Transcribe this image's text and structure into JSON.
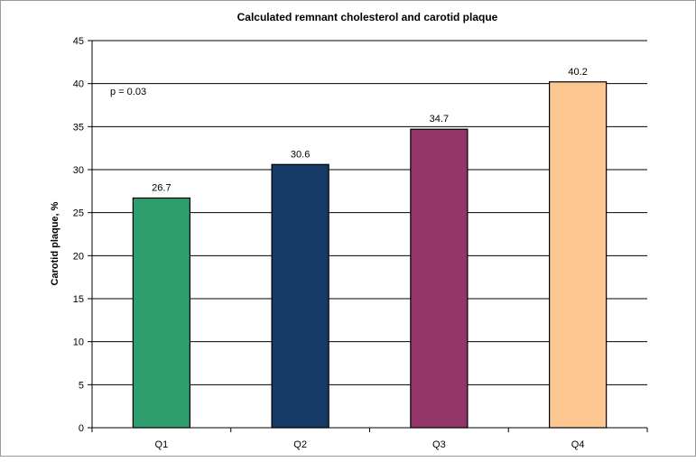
{
  "chart_data": {
    "type": "bar",
    "title": "Calculated remnant cholesterol and carotid plaque",
    "xlabel": "",
    "ylabel": "Carotid plaque, %",
    "categories": [
      "Q1",
      "Q2",
      "Q3",
      "Q4"
    ],
    "values": [
      26.7,
      30.6,
      34.7,
      40.2
    ],
    "data_labels": [
      "26.7",
      "30.6",
      "34.7",
      "40.2"
    ],
    "colors": [
      "#2e9e6e",
      "#163a66",
      "#933568",
      "#fcc691"
    ],
    "ylim": [
      0,
      45
    ],
    "yticks": [
      0,
      5,
      10,
      15,
      20,
      25,
      30,
      35,
      40,
      45
    ],
    "grid": true,
    "annotation": "p = 0.03"
  }
}
